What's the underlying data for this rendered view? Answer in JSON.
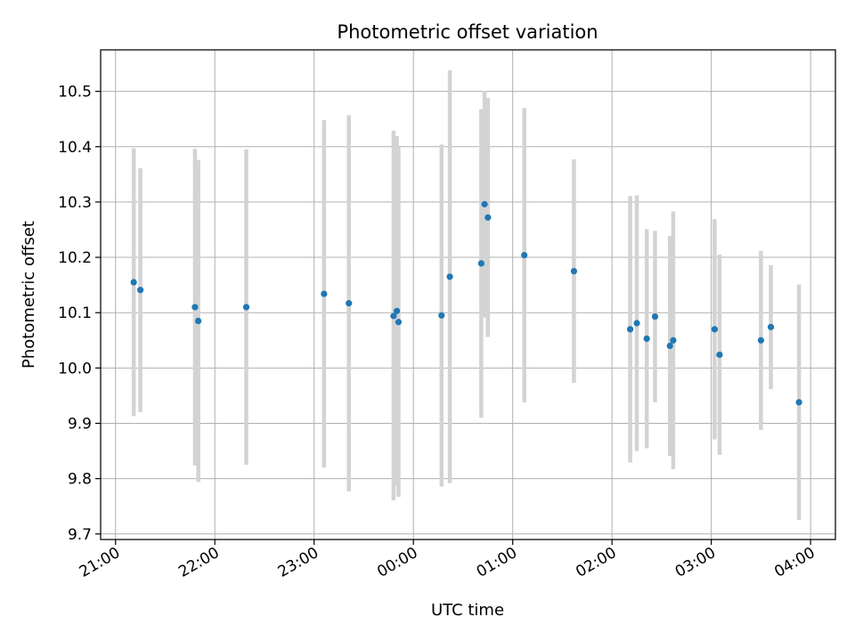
{
  "chart_data": {
    "type": "scatter",
    "title": "Photometric offset variation",
    "xlabel": "UTC time",
    "ylabel": "Photometric offset",
    "grid": true,
    "x_axis": {
      "kind": "time",
      "range": [
        "20:51",
        "04:15"
      ],
      "ticks": [
        "21:00",
        "22:00",
        "23:00",
        "00:00",
        "01:00",
        "02:00",
        "03:00",
        "04:00"
      ],
      "tick_label_rotation": 30
    },
    "y_axis": {
      "range": [
        9.69,
        10.575
      ],
      "ticks": [
        9.7,
        9.8,
        9.9,
        10.0,
        10.1,
        10.2,
        10.3,
        10.4,
        10.5
      ],
      "tick_labels": [
        "9.7",
        "9.8",
        "9.9",
        "10.0",
        "10.1",
        "10.2",
        "10.3",
        "10.4",
        "10.5"
      ]
    },
    "colors": {
      "point": "#1f77b4",
      "error_bar": "#d3d3d3",
      "grid": "#b0b0b0"
    },
    "points": [
      {
        "x": "21:11",
        "y": 10.155,
        "ymin": 9.913,
        "ymax": 10.397
      },
      {
        "x": "21:15",
        "y": 10.141,
        "ymin": 9.92,
        "ymax": 10.361
      },
      {
        "x": "21:48",
        "y": 10.11,
        "ymin": 9.824,
        "ymax": 10.396
      },
      {
        "x": "21:50",
        "y": 10.085,
        "ymin": 9.794,
        "ymax": 10.376
      },
      {
        "x": "22:19",
        "y": 10.11,
        "ymin": 9.825,
        "ymax": 10.395
      },
      {
        "x": "23:06",
        "y": 10.134,
        "ymin": 9.82,
        "ymax": 10.448
      },
      {
        "x": "23:21",
        "y": 10.117,
        "ymin": 9.777,
        "ymax": 10.457
      },
      {
        "x": "23:48",
        "y": 10.094,
        "ymin": 9.761,
        "ymax": 10.429
      },
      {
        "x": "23:50",
        "y": 10.103,
        "ymin": 9.787,
        "ymax": 10.419
      },
      {
        "x": "23:51",
        "y": 10.083,
        "ymin": 9.767,
        "ymax": 10.399
      },
      {
        "x": "00:17",
        "y": 10.095,
        "ymin": 9.786,
        "ymax": 10.404
      },
      {
        "x": "00:22",
        "y": 10.165,
        "ymin": 9.792,
        "ymax": 10.538
      },
      {
        "x": "00:41",
        "y": 10.189,
        "ymin": 9.91,
        "ymax": 10.468
      },
      {
        "x": "00:43",
        "y": 10.296,
        "ymin": 10.091,
        "ymax": 10.501
      },
      {
        "x": "00:45",
        "y": 10.272,
        "ymin": 10.056,
        "ymax": 10.488
      },
      {
        "x": "01:07",
        "y": 10.204,
        "ymin": 9.938,
        "ymax": 10.47
      },
      {
        "x": "01:37",
        "y": 10.175,
        "ymin": 9.973,
        "ymax": 10.377
      },
      {
        "x": "02:11",
        "y": 10.07,
        "ymin": 9.829,
        "ymax": 10.311
      },
      {
        "x": "02:15",
        "y": 10.081,
        "ymin": 9.85,
        "ymax": 10.312
      },
      {
        "x": "02:21",
        "y": 10.053,
        "ymin": 9.855,
        "ymax": 10.251
      },
      {
        "x": "02:26",
        "y": 10.093,
        "ymin": 9.938,
        "ymax": 10.248
      },
      {
        "x": "02:35",
        "y": 10.04,
        "ymin": 9.841,
        "ymax": 10.239
      },
      {
        "x": "02:37",
        "y": 10.05,
        "ymin": 9.817,
        "ymax": 10.283
      },
      {
        "x": "03:02",
        "y": 10.07,
        "ymin": 9.871,
        "ymax": 10.269
      },
      {
        "x": "03:05",
        "y": 10.024,
        "ymin": 9.843,
        "ymax": 10.205
      },
      {
        "x": "03:30",
        "y": 10.05,
        "ymin": 9.888,
        "ymax": 10.212
      },
      {
        "x": "03:36",
        "y": 10.074,
        "ymin": 9.962,
        "ymax": 10.186
      },
      {
        "x": "03:53",
        "y": 9.938,
        "ymin": 9.725,
        "ymax": 10.151
      }
    ]
  }
}
